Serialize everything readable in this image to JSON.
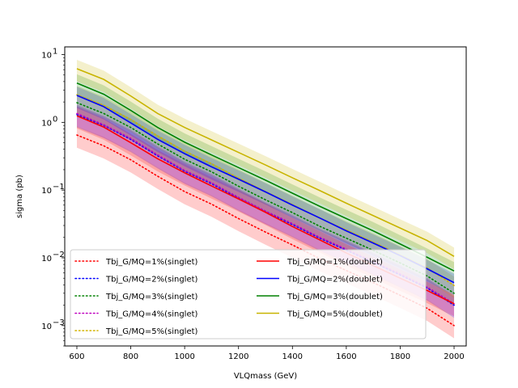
{
  "chart_data": {
    "type": "line",
    "xlabel": "VLQmass (GeV)",
    "ylabel": "sigma (pb)",
    "xlim": [
      555,
      2045
    ],
    "ylim": [
      0.0005,
      13
    ],
    "yscale": "log",
    "xticks": [
      600,
      800,
      1000,
      1200,
      1400,
      1600,
      1800,
      2000
    ],
    "yticks": [
      {
        "value": 10,
        "base": "10",
        "exp": "1"
      },
      {
        "value": 1,
        "base": "10",
        "exp": "0"
      },
      {
        "value": 0.1,
        "base": "10",
        "exp": "−1"
      },
      {
        "value": 0.01,
        "base": "10",
        "exp": "−2"
      },
      {
        "value": 0.001,
        "base": "10",
        "exp": "−3"
      }
    ],
    "grid": false,
    "legend_position": "lower-left",
    "x": [
      600,
      700,
      800,
      900,
      1000,
      1100,
      1200,
      1300,
      1400,
      1500,
      1600,
      1700,
      1800,
      1900,
      2000
    ],
    "band_fraction": 0.35,
    "series": [
      {
        "name": "Tbj_G/MQ=1%(singlet)",
        "color": "#ff0000",
        "style": "dotted",
        "values": [
          0.65,
          0.45,
          0.28,
          0.16,
          0.095,
          0.062,
          0.038,
          0.024,
          0.0155,
          0.0098,
          0.0065,
          0.0043,
          0.0028,
          0.0018,
          0.001
        ]
      },
      {
        "name": "Tbj_G/MQ=2%(singlet)",
        "color": "#0000ff",
        "style": "dotted",
        "values": [
          1.3,
          0.9,
          0.56,
          0.32,
          0.19,
          0.124,
          0.076,
          0.048,
          0.031,
          0.0196,
          0.013,
          0.0086,
          0.0056,
          0.0036,
          0.002
        ]
      },
      {
        "name": "Tbj_G/MQ=3%(singlet)",
        "color": "#008000",
        "style": "dotted",
        "values": [
          1.95,
          1.35,
          0.84,
          0.48,
          0.285,
          0.186,
          0.114,
          0.072,
          0.0465,
          0.0294,
          0.0195,
          0.0129,
          0.0084,
          0.0054,
          0.003
        ]
      },
      {
        "name": "Tbj_G/MQ=4%(singlet)",
        "color": "#bf00bf",
        "style": "dotted",
        "values": [
          1.35,
          0.92,
          0.58,
          0.33,
          0.195,
          0.128,
          0.078,
          0.049,
          0.032,
          0.0202,
          0.0134,
          0.0088,
          0.0058,
          0.0037,
          0.0021
        ]
      },
      {
        "name": "Tbj_G/MQ=5%(singlet)",
        "color": "#d4b400",
        "style": "dotted",
        "values": [
          2.55,
          1.78,
          1.1,
          0.63,
          0.375,
          0.245,
          0.15,
          0.095,
          0.061,
          0.0387,
          0.0257,
          0.017,
          0.011,
          0.0071,
          0.0039
        ]
      },
      {
        "name": "Tbj_G/MQ=1%(doublet)",
        "color": "#ff0000",
        "style": "solid",
        "values": [
          1.25,
          0.85,
          0.5,
          0.29,
          0.18,
          0.115,
          0.074,
          0.047,
          0.029,
          0.0185,
          0.0118,
          0.0077,
          0.005,
          0.0033,
          0.0021
        ]
      },
      {
        "name": "Tbj_G/MQ=2%(doublet)",
        "color": "#0000ff",
        "style": "solid",
        "values": [
          2.5,
          1.7,
          0.98,
          0.56,
          0.345,
          0.22,
          0.145,
          0.094,
          0.06,
          0.039,
          0.025,
          0.0165,
          0.0108,
          0.0069,
          0.0043
        ]
      },
      {
        "name": "Tbj_G/MQ=3%(doublet)",
        "color": "#008000",
        "style": "solid",
        "values": [
          3.8,
          2.6,
          1.5,
          0.84,
          0.51,
          0.33,
          0.215,
          0.14,
          0.09,
          0.058,
          0.038,
          0.025,
          0.016,
          0.0102,
          0.0064
        ]
      },
      {
        "name": "Tbj_G/MQ=5%(doublet)",
        "color": "#c8b400",
        "style": "solid",
        "values": [
          6.2,
          4.3,
          2.45,
          1.35,
          0.84,
          0.55,
          0.36,
          0.235,
          0.152,
          0.099,
          0.064,
          0.042,
          0.0275,
          0.018,
          0.0105
        ]
      }
    ]
  }
}
